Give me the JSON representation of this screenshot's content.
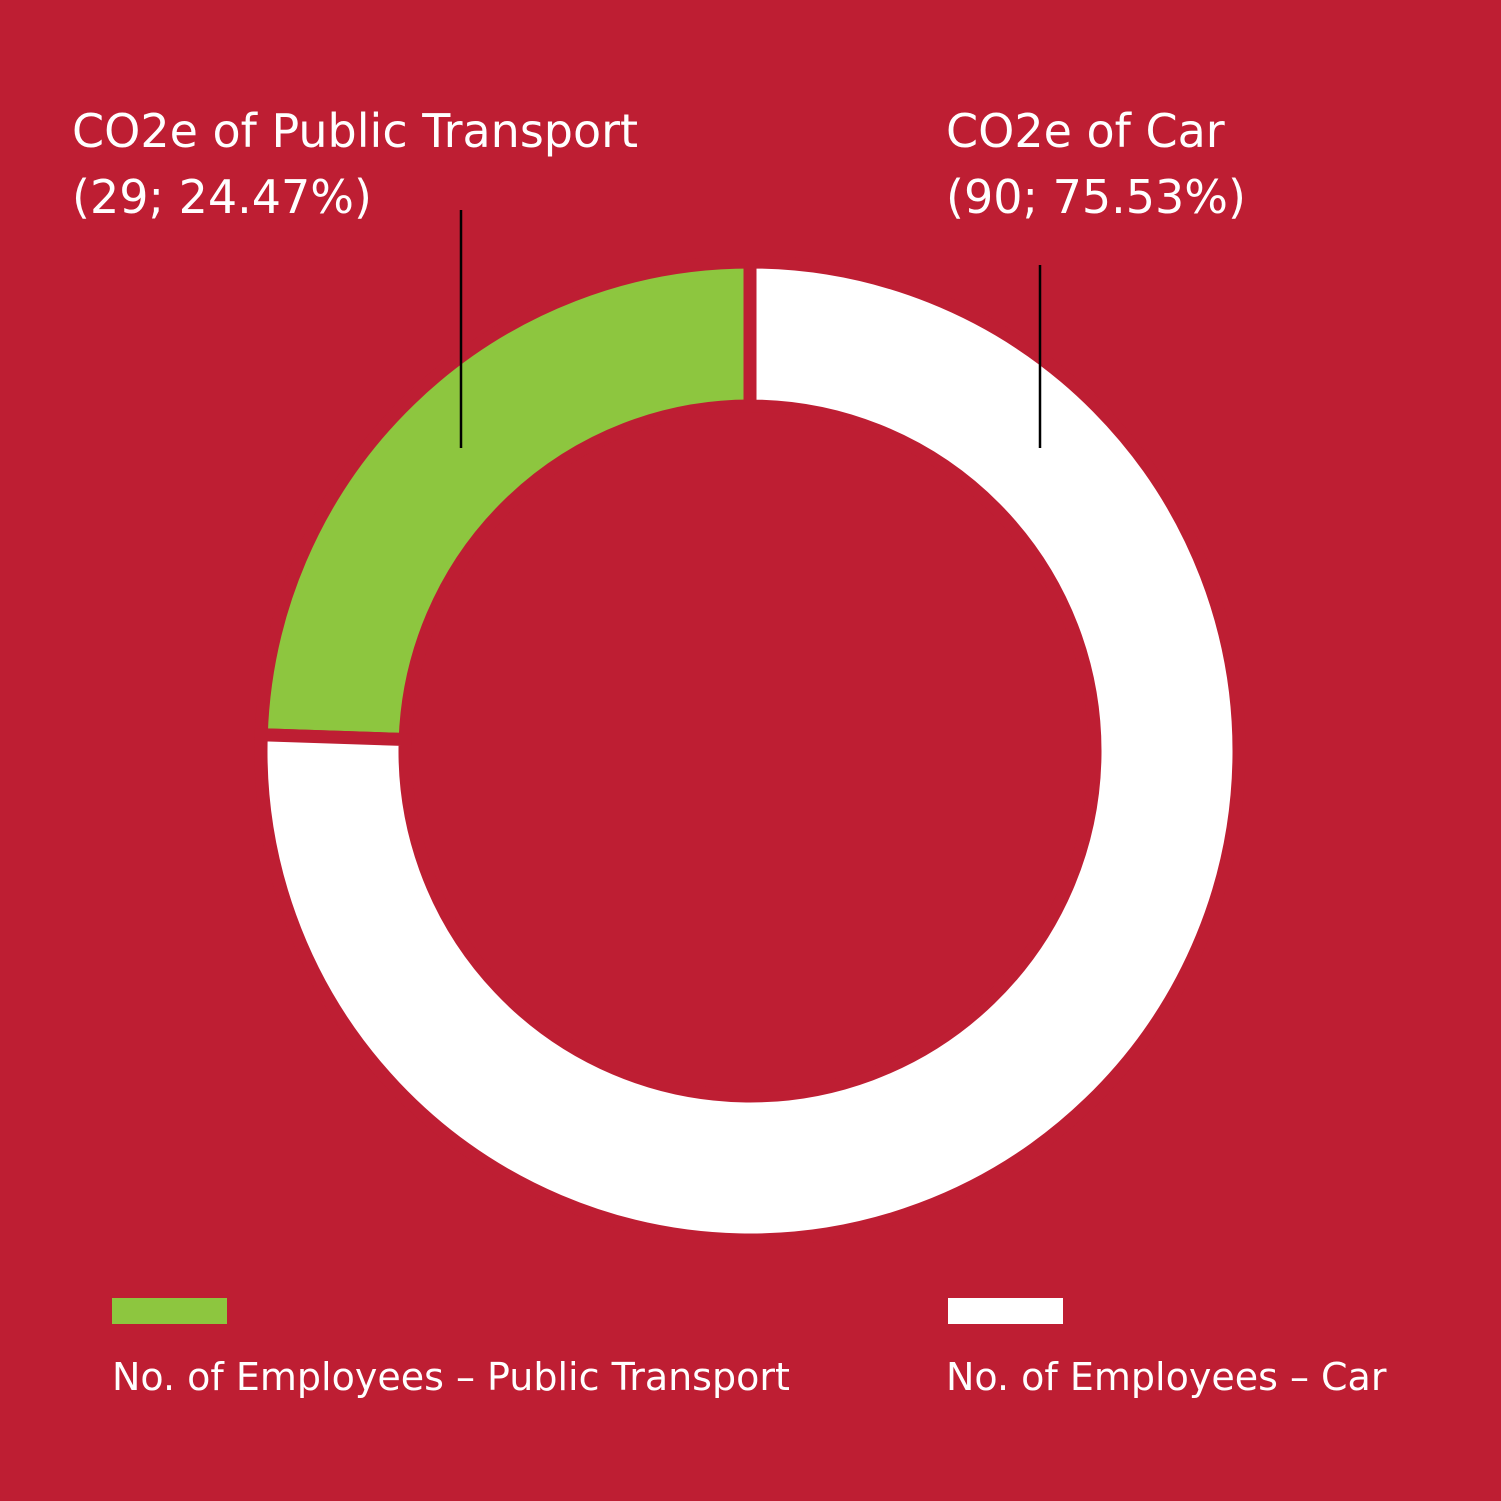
{
  "chart_data": {
    "type": "donut",
    "categories": [
      "CO2e of Public Transport",
      "CO2e of Car"
    ],
    "values": [
      24.47,
      75.53
    ],
    "value_labels": [
      "(29; 24.47%)",
      "(90; 75.53%)"
    ],
    "colors": [
      "#8dc63f",
      "#ffffff"
    ],
    "legend_labels": [
      "No. of Employees – Public Transport",
      "No. of Employees – Car"
    ]
  }
}
